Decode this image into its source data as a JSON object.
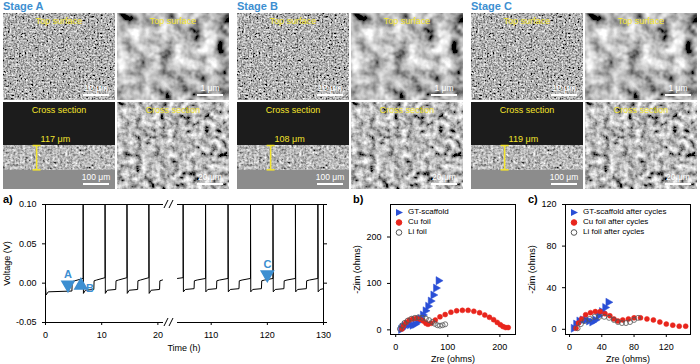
{
  "images": [
    {
      "stage": "Stage A",
      "panels": [
        {
          "label": "Top surface",
          "scale_bar": "10 μm"
        },
        {
          "label": "Top surface",
          "scale_bar": "1 μm"
        },
        {
          "label": "Cross section",
          "scale_bar": "100 μm",
          "thickness": "117 μm"
        },
        {
          "label": "Cross section",
          "scale_bar": "20 μm"
        }
      ]
    },
    {
      "stage": "Stage B",
      "panels": [
        {
          "label": "Top surface",
          "scale_bar": "10 μm"
        },
        {
          "label": "Top surface",
          "scale_bar": "1 μm"
        },
        {
          "label": "Cross section",
          "scale_bar": "100 μm",
          "thickness": "108 μm"
        },
        {
          "label": "Cross section",
          "scale_bar": "20 μm"
        }
      ]
    },
    {
      "stage": "Stage C",
      "panels": [
        {
          "label": "Top surface",
          "scale_bar": "10 μm"
        },
        {
          "label": "Top surface",
          "scale_bar": "1 μm"
        },
        {
          "label": "Cross section",
          "scale_bar": "100 μm",
          "thickness": "119 μm"
        },
        {
          "label": "Cross section",
          "scale_bar": "20 μm"
        }
      ]
    }
  ],
  "chart_data": [
    {
      "type": "line",
      "panel_label": "a)",
      "x_label": "Time (h)",
      "y_label": "Voltage (V)",
      "color": "#000000",
      "xlim": [
        0,
        21
      ],
      "xticks": [
        0,
        10,
        20
      ],
      "ylim": [
        -0.05,
        0.1
      ],
      "yticks": [
        {
          "value": -0.05,
          "label": "-0.05"
        },
        {
          "value": 0,
          "label": "0.00"
        },
        {
          "value": 0.05,
          "label": "0.05"
        },
        {
          "value": 0.1,
          "label": "0.10"
        }
      ],
      "x": [
        0,
        0.1,
        0.5,
        4.7,
        4.75,
        5.2,
        6.7,
        6.7,
        6.75,
        7.1,
        8.6,
        8.65,
        9.1,
        10.6,
        10.6,
        10.65,
        11,
        12.5,
        12.55,
        13,
        14.5,
        14.5,
        14.55,
        14.9,
        16.4,
        16.45,
        16.9,
        18.4,
        18.4,
        18.45,
        18.8,
        20.3,
        20.35,
        20.8,
        21
      ],
      "values": [
        -0.004,
        -0.015,
        -0.011,
        -0.01,
        0.002,
        0.003,
        0.006,
        0.1,
        -0.013,
        -0.009,
        -0.008,
        0.003,
        0.004,
        0.007,
        0.1,
        -0.013,
        -0.009,
        -0.008,
        0.003,
        0.004,
        0.007,
        0.1,
        -0.013,
        -0.009,
        -0.008,
        0.003,
        0.004,
        0.007,
        0.1,
        -0.013,
        -0.009,
        -0.008,
        0.003,
        0.004,
        0.005
      ],
      "annotations": [
        {
          "text": "A",
          "x": 4,
          "y": -0.002,
          "marker": "triangle-down",
          "color": "#3d8fd1"
        },
        {
          "text": "B",
          "x": 6.3,
          "y": -0.003,
          "marker": "triangle-up",
          "color": "#3d8fd1"
        }
      ]
    },
    {
      "type": "line",
      "color": "#000000",
      "tick_labels": "x",
      "xlim": [
        104,
        130
      ],
      "xticks": [
        110,
        120,
        130
      ],
      "ylim": [
        -0.05,
        0.1
      ],
      "yticks": [
        {
          "value": -0.05,
          "label": "-0.05"
        },
        {
          "value": 0,
          "label": "0.00"
        },
        {
          "value": 0.05,
          "label": "0.05"
        },
        {
          "value": 0.1,
          "label": "0.10"
        }
      ],
      "x": [
        104,
        105,
        105,
        105.05,
        105.4,
        106.95,
        107,
        107.5,
        109,
        109,
        109.05,
        109.4,
        110.95,
        111,
        111.5,
        113,
        113,
        113.05,
        113.4,
        114.95,
        115,
        115.5,
        117,
        117,
        117.05,
        117.4,
        118.95,
        119,
        119.5,
        121,
        121,
        121.05,
        121.4,
        122.95,
        123,
        123.5,
        125,
        125,
        125.05,
        125.4,
        126.95,
        127,
        127.5,
        129,
        129,
        129.05,
        129.4,
        130
      ],
      "values": [
        0.006,
        0.007,
        0.1,
        -0.011,
        -0.008,
        -0.007,
        0.003,
        0.004,
        0.006,
        0.1,
        -0.011,
        -0.008,
        -0.007,
        0.003,
        0.004,
        0.006,
        0.1,
        -0.011,
        -0.008,
        -0.007,
        0.003,
        0.004,
        0.006,
        0.1,
        -0.011,
        -0.008,
        -0.007,
        0.003,
        0.004,
        0.006,
        0.1,
        -0.011,
        -0.008,
        -0.007,
        0.003,
        0.004,
        0.006,
        0.1,
        -0.011,
        -0.008,
        -0.007,
        0.003,
        0.004,
        0.006,
        0.1,
        -0.011,
        -0.008,
        -0.007
      ],
      "annotations": [
        {
          "text": "C",
          "x": 120,
          "y": 0.011,
          "marker": "triangle-down",
          "color": "#3d8fd1"
        }
      ]
    },
    {
      "type": "scatter",
      "panel_label": "b)",
      "x_label": "Zre (ohms)",
      "y_label": "-Zim (ohms)",
      "legend": "top-left",
      "xlim": [
        -10,
        230
      ],
      "xticks": [
        0,
        100,
        200
      ],
      "ylim": [
        -10,
        270
      ],
      "yticks": [
        0,
        100,
        200
      ],
      "series": [
        {
          "name": "GT-scaffold",
          "color": "#2a4fd6",
          "marker": "triangle-right",
          "x": [
            10,
            13,
            17,
            22,
            27,
            32,
            37,
            42,
            47,
            52,
            57,
            62,
            67,
            72,
            77,
            82
          ],
          "values": [
            1,
            5,
            9,
            11,
            11,
            10,
            12,
            17,
            24,
            32,
            41,
            51,
            62,
            75,
            90,
            106
          ]
        },
        {
          "name": "Cu foil",
          "color": "#e8251c",
          "marker": "circle",
          "x": [
            12,
            15,
            20,
            26,
            33,
            40,
            47,
            53,
            58,
            62,
            68,
            76,
            85,
            95,
            106,
            117,
            128,
            139,
            150,
            161,
            171,
            180,
            188,
            195,
            201,
            206,
            211,
            216
          ],
          "values": [
            2,
            9,
            16,
            21,
            24,
            25,
            23,
            19,
            14,
            12,
            14,
            21,
            28,
            33,
            38,
            41,
            42,
            42,
            40,
            37,
            32,
            27,
            22,
            16,
            11,
            7,
            5,
            5
          ]
        },
        {
          "name": "Li foil",
          "color": "#555555",
          "marker": "circle-open",
          "x": [
            8,
            12,
            17,
            23,
            30,
            37,
            44,
            51,
            58,
            64,
            70,
            75,
            80,
            85,
            90,
            95
          ],
          "values": [
            2,
            9,
            15,
            20,
            24,
            26,
            27,
            26,
            24,
            21,
            17,
            13,
            10,
            9,
            10,
            12
          ]
        }
      ]
    },
    {
      "type": "scatter",
      "panel_label": "c)",
      "x_label": "Zre (ohms)",
      "y_label": "-Zim (ohms)",
      "legend": "top-left",
      "xlim": [
        -5,
        150
      ],
      "xticks": [
        0,
        40,
        80,
        120
      ],
      "ylim": [
        -5,
        120
      ],
      "yticks": [
        0,
        40,
        80,
        120
      ],
      "series": [
        {
          "name": "GT-scaffold after cycles",
          "color": "#2a4fd6",
          "marker": "triangle-right",
          "x": [
            5,
            8,
            12,
            16,
            20,
            24,
            28,
            32,
            36,
            40,
            44,
            48
          ],
          "values": [
            1,
            5,
            8,
            9,
            9,
            8,
            7,
            9,
            13,
            17,
            21,
            26
          ]
        },
        {
          "name": "Cu foil after cycles",
          "color": "#e8251c",
          "marker": "circle",
          "x": [
            8,
            11,
            15,
            20,
            26,
            32,
            38,
            44,
            50,
            55,
            60,
            66,
            73,
            80,
            88,
            96,
            104,
            112,
            120,
            128,
            136,
            144
          ],
          "values": [
            1,
            6,
            10,
            14,
            16,
            17,
            17,
            15,
            13,
            10,
            8,
            9,
            10,
            11,
            11,
            10,
            9,
            7,
            5,
            4,
            3,
            3
          ]
        },
        {
          "name": "Li foil after cycles",
          "color": "#555555",
          "marker": "circle-open",
          "x": [
            10,
            14,
            19,
            25,
            31,
            37,
            43,
            49,
            55,
            60,
            65,
            70,
            75,
            80,
            85
          ],
          "values": [
            1,
            5,
            8,
            10,
            12,
            12,
            12,
            11,
            9,
            7,
            6,
            6,
            7,
            9,
            11
          ]
        }
      ]
    }
  ]
}
